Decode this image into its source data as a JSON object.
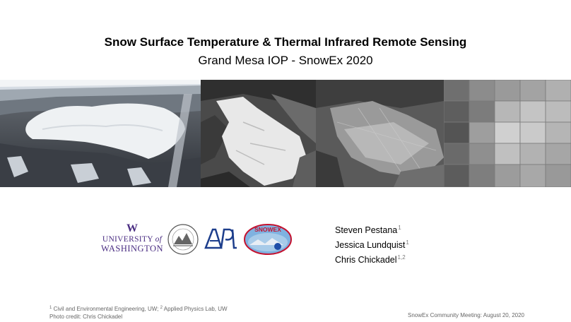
{
  "title": "Snow Surface Temperature & Thermal Infrared Remote Sensing",
  "subtitle": "Grand Mesa IOP - SnowEx 2020",
  "images": [
    {
      "name": "aerial-photo"
    },
    {
      "name": "visible-satellite-image"
    },
    {
      "name": "thermal-image"
    },
    {
      "name": "coarse-thermal-image"
    }
  ],
  "logos": {
    "uw_top": "W",
    "uw_line1_a": "UNIVERSITY ",
    "uw_line1_b": "of",
    "uw_line2": "WASHINGTON",
    "snowex": "SNOWEX"
  },
  "authors": [
    {
      "name": "Steven Pestana",
      "aff": "1"
    },
    {
      "name": "Jessica Lundquist",
      "aff": "1"
    },
    {
      "name": "Chris Chickadel",
      "aff": "1,2"
    }
  ],
  "footnote": {
    "aff1_num": "1",
    "aff1_text": " Civil and Environmental Engineering, UW; ",
    "aff2_num": "2",
    "aff2_text": " Applied Physics Lab, UW",
    "credit": "Photo credit: Chris Chickadel"
  },
  "meeting": "SnowEx Community Meeting: August 20, 2020"
}
